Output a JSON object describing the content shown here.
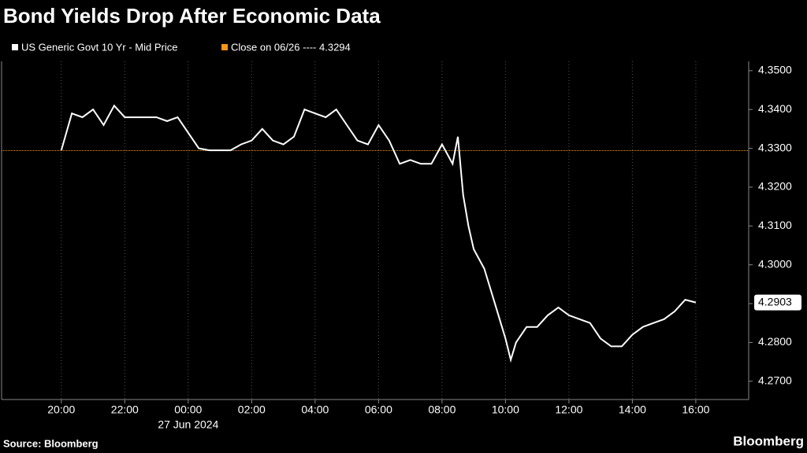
{
  "chart_data": {
    "type": "line",
    "title": "Bond Yields Drop After Economic Data",
    "source": "Source: Bloomberg",
    "brand": "Bloomberg",
    "x_sublabel": "27 Jun 2024",
    "x": [
      "20:00",
      "20:20",
      "20:40",
      "21:00",
      "21:20",
      "21:40",
      "22:00",
      "22:20",
      "22:40",
      "23:00",
      "23:20",
      "23:40",
      "00:00",
      "00:20",
      "00:40",
      "01:00",
      "01:20",
      "01:40",
      "02:00",
      "02:20",
      "02:40",
      "03:00",
      "03:20",
      "03:40",
      "04:00",
      "04:20",
      "04:40",
      "05:00",
      "05:20",
      "05:40",
      "06:00",
      "06:20",
      "06:40",
      "07:00",
      "07:20",
      "07:40",
      "08:00",
      "08:20",
      "08:30",
      "08:40",
      "08:50",
      "09:00",
      "09:20",
      "09:40",
      "10:00",
      "10:10",
      "10:20",
      "10:40",
      "11:00",
      "11:20",
      "11:40",
      "12:00",
      "12:20",
      "12:40",
      "13:00",
      "13:20",
      "13:40",
      "14:00",
      "14:20",
      "14:40",
      "15:00",
      "15:20",
      "15:40",
      "16:00"
    ],
    "series": [
      {
        "name": "US Generic Govt 10 Yr - Mid Price",
        "color": "#ffffff",
        "values": [
          4.3295,
          4.339,
          4.338,
          4.34,
          4.336,
          4.341,
          4.338,
          4.338,
          4.338,
          4.338,
          4.337,
          4.338,
          4.334,
          4.33,
          4.3295,
          4.3295,
          4.3295,
          4.331,
          4.332,
          4.335,
          4.332,
          4.331,
          4.333,
          4.34,
          4.339,
          4.338,
          4.34,
          4.336,
          4.332,
          4.331,
          4.336,
          4.332,
          4.326,
          4.327,
          4.326,
          4.326,
          4.331,
          4.326,
          4.333,
          4.318,
          4.31,
          4.304,
          4.299,
          4.29,
          4.281,
          4.2755,
          4.28,
          4.284,
          4.284,
          4.287,
          4.289,
          4.287,
          4.286,
          4.285,
          4.281,
          4.279,
          4.279,
          4.282,
          4.284,
          4.285,
          4.286,
          4.288,
          4.291,
          4.2903
        ]
      }
    ],
    "reference": {
      "label": "Close on 06/26 ---- 4.3294",
      "value": 4.3294,
      "color": "#f7931a"
    },
    "xlim": [
      "18:10",
      "17:40"
    ],
    "xticks": [
      "20:00",
      "22:00",
      "00:00",
      "02:00",
      "04:00",
      "06:00",
      "08:00",
      "10:00",
      "12:00",
      "14:00",
      "16:00"
    ],
    "ylim": [
      4.2653,
      4.3524
    ],
    "yticks": [
      {
        "value": 4.35,
        "label": "4.3500"
      },
      {
        "value": 4.34,
        "label": "4.3400"
      },
      {
        "value": 4.33,
        "label": "4.3300"
      },
      {
        "value": 4.32,
        "label": "4.3200"
      },
      {
        "value": 4.31,
        "label": "4.3100"
      },
      {
        "value": 4.3,
        "label": "4.3000"
      },
      {
        "value": 4.29,
        "label": "4.2900"
      },
      {
        "value": 4.28,
        "label": "4.2800"
      },
      {
        "value": 4.27,
        "label": "4.2700"
      }
    ],
    "grid": "x"
  }
}
